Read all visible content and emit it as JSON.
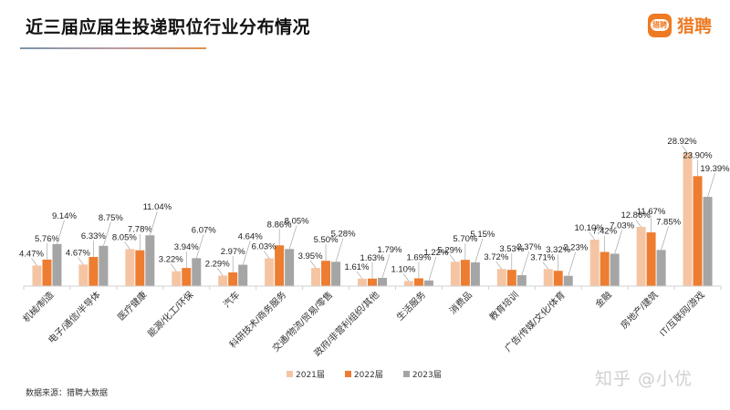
{
  "header": {
    "title": "近三届应届生投递职位行业分布情况",
    "logo_text": "猎聘",
    "logo_mark_text": "猎聘",
    "logo_icon": "liepin-logo-icon"
  },
  "footer": {
    "source": "数据来源：猎聘大数据",
    "watermark": "知乎 @小优"
  },
  "colors": {
    "series_2021": "#f5c5a3",
    "series_2022": "#ed7d31",
    "series_2023": "#a5a5a5",
    "accent": "#ee7a22"
  },
  "chart_data": {
    "type": "bar",
    "title": "近三届应届生投递职位行业分布情况",
    "xlabel": "",
    "ylabel": "",
    "ylim": [
      0,
      30
    ],
    "grid": false,
    "legend_position": "bottom",
    "categories": [
      "机械/制造",
      "电子/通信/半导体",
      "医疗健康",
      "能源/化工/环保",
      "汽车",
      "科研技术/商务服务",
      "交通/物流/贸易/零售",
      "政府/非营利组织/其他",
      "生活服务",
      "消费品",
      "教育培训",
      "广告/传媒/文化/体育",
      "金融",
      "房地产/建筑",
      "IT/互联网/游戏"
    ],
    "series": [
      {
        "name": "2021届",
        "values": [
          4.47,
          4.67,
          8.05,
          3.22,
          2.29,
          6.03,
          3.95,
          1.61,
          1.1,
          5.29,
          3.72,
          3.71,
          10.1,
          12.86,
          28.92
        ],
        "labels": [
          "4.47%",
          "4.67%",
          "8.05%",
          "3.22%",
          "2.29%",
          "6.03%",
          "3.95%",
          "1.61%",
          "1.10%",
          "5.29%",
          "3.72%",
          "3.71%",
          "10.10%",
          "12.86%",
          "28.92%"
        ]
      },
      {
        "name": "2022届",
        "values": [
          5.76,
          6.33,
          7.78,
          3.94,
          2.97,
          8.86,
          5.5,
          1.63,
          1.69,
          5.7,
          3.53,
          3.32,
          7.42,
          11.67,
          23.9
        ],
        "labels": [
          "5.76%",
          "6.33%",
          "7.78%",
          "3.94%",
          "2.97%",
          "8.86%",
          "5.50%",
          "1.63%",
          "1.69%",
          "5.70%",
          "3.53%",
          "3.32%",
          "7.42%",
          "11.67%",
          "23.90%"
        ]
      },
      {
        "name": "2023届",
        "values": [
          9.14,
          8.75,
          11.04,
          6.07,
          4.64,
          8.05,
          5.28,
          1.79,
          1.22,
          5.15,
          2.37,
          2.23,
          7.03,
          7.85,
          19.39
        ],
        "labels": [
          "9.14%",
          "8.75%",
          "11.04%",
          "6.07%",
          "4.64%",
          "8.05%",
          "5.28%",
          "1.79%",
          "1.22%",
          "5.15%",
          "2.37%",
          "2.23%",
          "7.03%",
          "7.85%",
          "19.39%"
        ]
      }
    ]
  }
}
